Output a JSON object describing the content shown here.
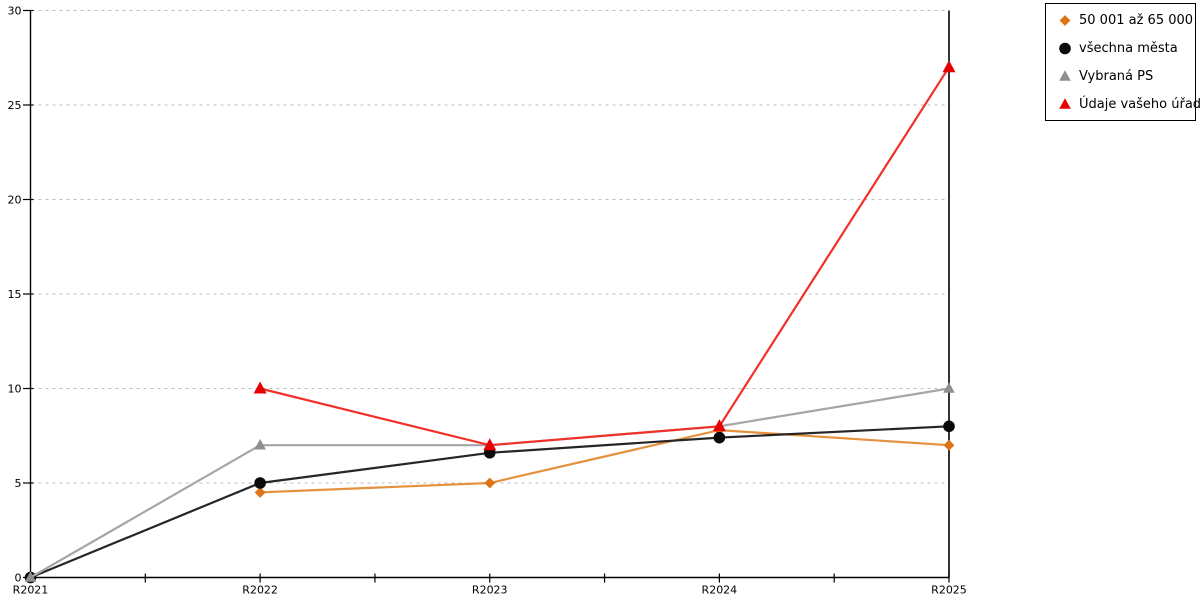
{
  "chart_data": {
    "type": "line",
    "title": "",
    "xlabel": "",
    "ylabel": "",
    "background_color": "#ffffff",
    "categories": [
      "R2021",
      "R2022",
      "R2023",
      "R2024",
      "R2025"
    ],
    "y_ticks": [
      0,
      5,
      10,
      15,
      20,
      25,
      30
    ],
    "ylim": [
      0,
      30
    ],
    "grid": {
      "show": true,
      "color": "#bcbcbc",
      "dash": "3,4"
    },
    "axis_color": "#000000",
    "legend_position": "top-right",
    "series": [
      {
        "name": "50 001 až 65 000",
        "marker": "diamond",
        "line_color": "#e5923f",
        "marker_color": "#dd7517",
        "values": [
          null,
          4.5,
          5,
          7.8,
          7
        ]
      },
      {
        "name": "všechna města",
        "marker": "circle",
        "line_color": "#262626",
        "marker_color": "#0a0a0a",
        "values": [
          0,
          5,
          6.6,
          7.4,
          8
        ]
      },
      {
        "name": "Vybraná PS",
        "marker": "triangle",
        "line_color": "#a6a6a6",
        "marker_color": "#8f8f8f",
        "values": [
          0,
          7,
          7,
          8,
          10
        ]
      },
      {
        "name": "Údaje vašeho úřadu",
        "marker": "triangle",
        "line_color": "#f1302a",
        "marker_color": "#e60000",
        "values": [
          null,
          10,
          7,
          8,
          27
        ]
      }
    ]
  }
}
